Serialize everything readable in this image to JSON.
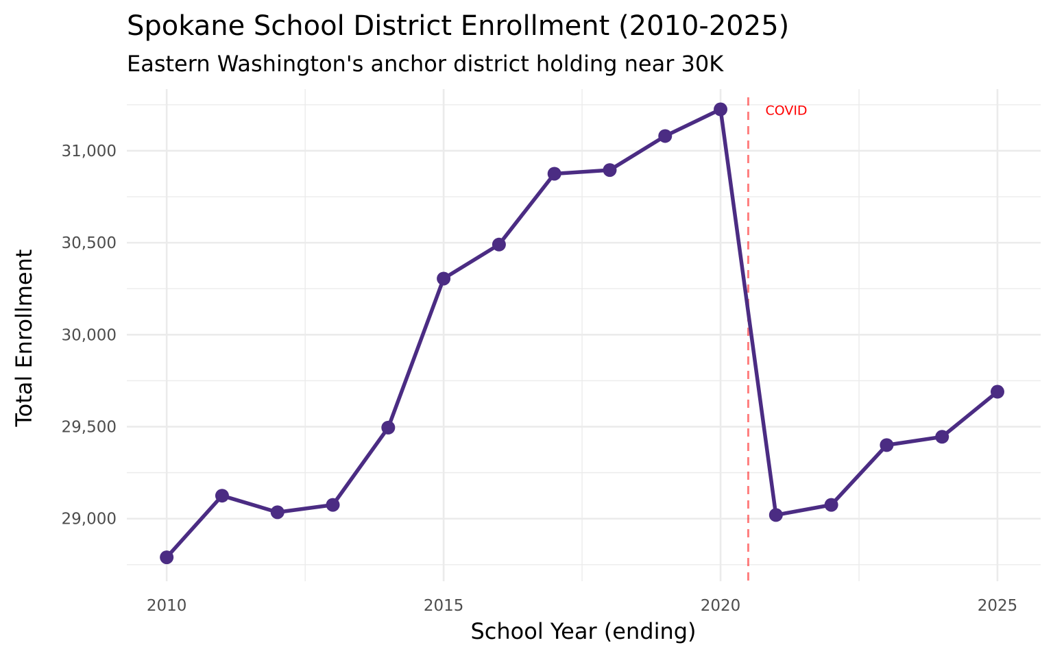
{
  "chart_data": {
    "type": "line",
    "title": "Spokane School District Enrollment (2010-2025)",
    "subtitle": "Eastern Washington's anchor district holding near 30K",
    "xlabel": "School Year (ending)",
    "ylabel": "Total Enrollment",
    "x": [
      2010,
      2011,
      2012,
      2013,
      2014,
      2015,
      2016,
      2017,
      2018,
      2019,
      2020,
      2021,
      2022,
      2023,
      2024,
      2025
    ],
    "series": [
      {
        "values": [
          28790,
          29125,
          29035,
          29075,
          29495,
          30305,
          30490,
          30875,
          30895,
          31080,
          31225,
          29020,
          29075,
          29400,
          29445,
          29690
        ]
      }
    ],
    "xlim": [
      2009.28,
      2025.78
    ],
    "ylim": [
      28660,
      31335
    ],
    "x_ticks": [
      2010,
      2015,
      2020,
      2025
    ],
    "x_tick_labels": [
      "2010",
      "2015",
      "2020",
      "2025"
    ],
    "y_ticks": [
      29000,
      29500,
      30000,
      30500,
      31000
    ],
    "y_tick_labels": [
      "29,000",
      "29,500",
      "30,000",
      "30,500",
      "31,000"
    ],
    "grid": true,
    "legend": "none",
    "line_color": "#4b2c83",
    "reference_line": {
      "x": 2020.5,
      "label": "COVID",
      "color": "#ff0000",
      "style": "dashed"
    }
  }
}
